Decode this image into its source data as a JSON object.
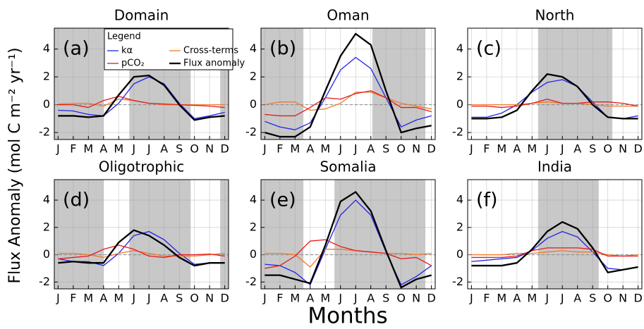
{
  "xlabel": "Months",
  "ylabel": "Flux Anomaly (mol C m⁻² yr⁻¹)",
  "legend": {
    "title": "Legend",
    "entries": [
      {
        "name": "kα",
        "color": "#2323e8"
      },
      {
        "name": "Cross-terms",
        "color": "#f07a2a"
      },
      {
        "name": "pCO₂",
        "color": "#e41a1c"
      },
      {
        "name": "Flux anomaly",
        "color": "#000000"
      }
    ]
  },
  "chart_data": [
    {
      "type": "line",
      "title": "Domain",
      "panel_label": "(a)",
      "categories": [
        "J",
        "F",
        "M",
        "A",
        "M",
        "J",
        "J",
        "A",
        "S",
        "O",
        "N",
        "D"
      ],
      "ylim": [
        -2.5,
        5.5
      ],
      "yticks": [
        -2,
        0,
        2,
        4
      ],
      "grid": true,
      "hline": 0,
      "shaded": [
        [
          -0.25,
          3
        ],
        [
          4.7,
          8.75
        ],
        [
          10.7,
          11.25
        ]
      ],
      "series": [
        {
          "values": [
            -0.4,
            -0.45,
            -0.7,
            -0.8,
            0.1,
            1.5,
            2.0,
            1.5,
            0.1,
            -1.0,
            -0.8,
            -0.55
          ]
        },
        {
          "values": [
            0.05,
            0.1,
            0.1,
            -0.1,
            0.4,
            0.3,
            0.1,
            0,
            0,
            0,
            0,
            0
          ]
        },
        {
          "values": [
            0,
            0,
            -0.2,
            0.3,
            0.6,
            0.3,
            0.1,
            0.05,
            0,
            -0.05,
            -0.1,
            -0.2
          ]
        },
        {
          "values": [
            -0.8,
            -0.8,
            -0.9,
            -0.8,
            0.7,
            2.0,
            2.1,
            1.4,
            0.0,
            -1.1,
            -0.9,
            -0.8
          ]
        }
      ]
    },
    {
      "type": "line",
      "title": "Oman",
      "panel_label": "(b)",
      "categories": [
        "J",
        "F",
        "M",
        "A",
        "M",
        "J",
        "J",
        "A",
        "S",
        "O",
        "N",
        "D"
      ],
      "ylim": [
        -2.5,
        5.5
      ],
      "yticks": [
        -2,
        0,
        2,
        4
      ],
      "grid": true,
      "hline": 0,
      "shaded": [
        [
          -0.25,
          2.55
        ],
        [
          7.1,
          10.6
        ]
      ],
      "series": [
        {
          "values": [
            -1.2,
            -1.6,
            -1.8,
            -1.3,
            0.5,
            2.5,
            3.4,
            2.6,
            0.5,
            -1.6,
            -1.1,
            -0.8
          ]
        },
        {
          "values": [
            0,
            0.2,
            0.2,
            -0.4,
            -0.3,
            0.1,
            0.9,
            0.9,
            0.5,
            0.1,
            -0.1,
            -0.3
          ]
        },
        {
          "values": [
            -0.7,
            -0.8,
            -0.8,
            -0.2,
            0.5,
            0.4,
            0.8,
            1.0,
            0.5,
            -0.2,
            -0.2,
            -0.5
          ]
        },
        {
          "values": [
            -2.0,
            -2.3,
            -2.3,
            -1.6,
            1.0,
            3.5,
            5.1,
            4.3,
            1.0,
            -2.0,
            -1.7,
            -1.5
          ]
        }
      ]
    },
    {
      "type": "line",
      "title": "North",
      "panel_label": "(c)",
      "categories": [
        "J",
        "F",
        "M",
        "A",
        "M",
        "J",
        "J",
        "A",
        "S",
        "O",
        "N",
        "D"
      ],
      "ylim": [
        -2.5,
        5.5
      ],
      "yticks": [
        -2,
        0,
        2,
        4
      ],
      "grid": true,
      "hline": 0,
      "shaded": [
        [
          4.4,
          9.3
        ]
      ],
      "series": [
        {
          "values": [
            -0.9,
            -0.9,
            -0.6,
            0,
            0.9,
            1.6,
            1.8,
            1.3,
            0.2,
            -0.9,
            -1.0,
            -0.8
          ]
        },
        {
          "values": [
            0,
            0,
            0,
            0,
            0.1,
            0.2,
            0.1,
            0.1,
            0,
            -0.1,
            -0.1,
            -0.1
          ]
        },
        {
          "values": [
            -0.1,
            -0.1,
            -0.2,
            -0.1,
            0.1,
            0.4,
            0.1,
            0.1,
            0.2,
            0.2,
            0.1,
            -0.1
          ]
        },
        {
          "values": [
            -1.0,
            -1.0,
            -0.9,
            -0.4,
            1.0,
            2.2,
            2.0,
            1.3,
            0,
            -0.9,
            -1.0,
            -1.0
          ]
        }
      ]
    },
    {
      "type": "line",
      "title": "Oligotrophic",
      "panel_label": "(d)",
      "categories": [
        "J",
        "F",
        "M",
        "A",
        "M",
        "J",
        "J",
        "A",
        "S",
        "O",
        "N",
        "D"
      ],
      "ylim": [
        -2.5,
        5.5
      ],
      "yticks": [
        -2,
        0,
        2,
        4
      ],
      "grid": true,
      "hline": 0,
      "shaded": [
        [
          -0.25,
          3
        ],
        [
          4.7,
          8.75
        ],
        [
          10.7,
          11.25
        ]
      ],
      "series": [
        {
          "values": [
            -0.3,
            -0.5,
            -0.5,
            -0.8,
            0.1,
            1.4,
            1.7,
            1.1,
            0.1,
            -0.7,
            -0.6,
            -0.6
          ]
        },
        {
          "values": [
            0.1,
            0.1,
            0,
            -0.2,
            0.1,
            0.3,
            0.1,
            -0.1,
            -0.1,
            -0.1,
            0,
            0.1
          ]
        },
        {
          "values": [
            -0.3,
            -0.2,
            -0.1,
            0.4,
            0.7,
            0.4,
            -0.1,
            -0.2,
            0,
            0,
            0.05,
            -0.1
          ]
        },
        {
          "values": [
            -0.6,
            -0.5,
            -0.6,
            -0.6,
            0.9,
            1.8,
            1.4,
            0.7,
            -0.2,
            -0.8,
            -0.6,
            -0.6
          ]
        }
      ]
    },
    {
      "type": "line",
      "title": "Somalia",
      "panel_label": "(e)",
      "categories": [
        "J",
        "F",
        "M",
        "A",
        "M",
        "J",
        "J",
        "A",
        "S",
        "O",
        "N",
        "D"
      ],
      "ylim": [
        -2.5,
        5.5
      ],
      "yticks": [
        -2,
        0,
        2,
        4
      ],
      "grid": true,
      "hline": 0,
      "shaded": [
        [
          -0.25,
          2.55
        ],
        [
          4.6,
          10.6
        ]
      ],
      "series": [
        {
          "values": [
            -0.7,
            -0.8,
            -1.3,
            -2.2,
            0.4,
            2.9,
            4.0,
            2.9,
            0.2,
            -2.2,
            -1.6,
            -0.8
          ]
        },
        {
          "values": [
            0.1,
            0.1,
            0,
            -0.9,
            0.4,
            0.4,
            0.3,
            0.2,
            0.1,
            0.1,
            0,
            0.1
          ]
        },
        {
          "values": [
            -1.0,
            -0.8,
            -0.1,
            1.0,
            1.1,
            0.6,
            0.3,
            0.2,
            0.1,
            -0.3,
            -0.2,
            -0.8
          ]
        },
        {
          "values": [
            -1.5,
            -1.5,
            -1.8,
            -2.1,
            0.7,
            3.9,
            4.6,
            3.2,
            0.3,
            -2.4,
            -1.8,
            -1.5
          ]
        }
      ]
    },
    {
      "type": "line",
      "title": "India",
      "panel_label": "(f)",
      "categories": [
        "J",
        "F",
        "M",
        "A",
        "M",
        "J",
        "J",
        "A",
        "S",
        "O",
        "N",
        "D"
      ],
      "ylim": [
        -2.5,
        5.5
      ],
      "yticks": [
        -2,
        0,
        2,
        4
      ],
      "grid": true,
      "hline": 0,
      "shaded": [
        [
          4.4,
          8.4
        ]
      ],
      "series": [
        {
          "values": [
            -0.5,
            -0.4,
            -0.3,
            -0.2,
            0.3,
            1.2,
            1.7,
            1.3,
            0.2,
            -1.0,
            -1.1,
            -0.9
          ]
        },
        {
          "values": [
            0,
            0,
            0,
            0.1,
            0.1,
            0.2,
            0.3,
            0.2,
            0.2,
            0,
            -0.1,
            0
          ]
        },
        {
          "values": [
            -0.2,
            -0.2,
            -0.2,
            -0.1,
            0.3,
            0.5,
            0.5,
            0.5,
            0.4,
            -0.1,
            -0.1,
            -0.1
          ]
        },
        {
          "values": [
            -0.8,
            -0.8,
            -0.8,
            -0.6,
            0.4,
            1.7,
            2.4,
            1.9,
            0.5,
            -1.3,
            -1.1,
            -0.9
          ]
        }
      ]
    }
  ]
}
